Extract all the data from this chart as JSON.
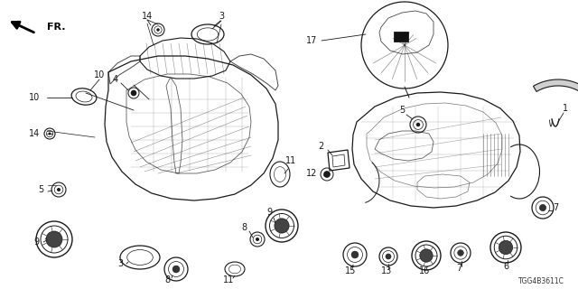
{
  "bg": "#ffffff",
  "lc": "#1a1a1a",
  "part_code": "TGG4B3611C",
  "figw": 6.4,
  "figh": 3.2,
  "dpi": 100
}
